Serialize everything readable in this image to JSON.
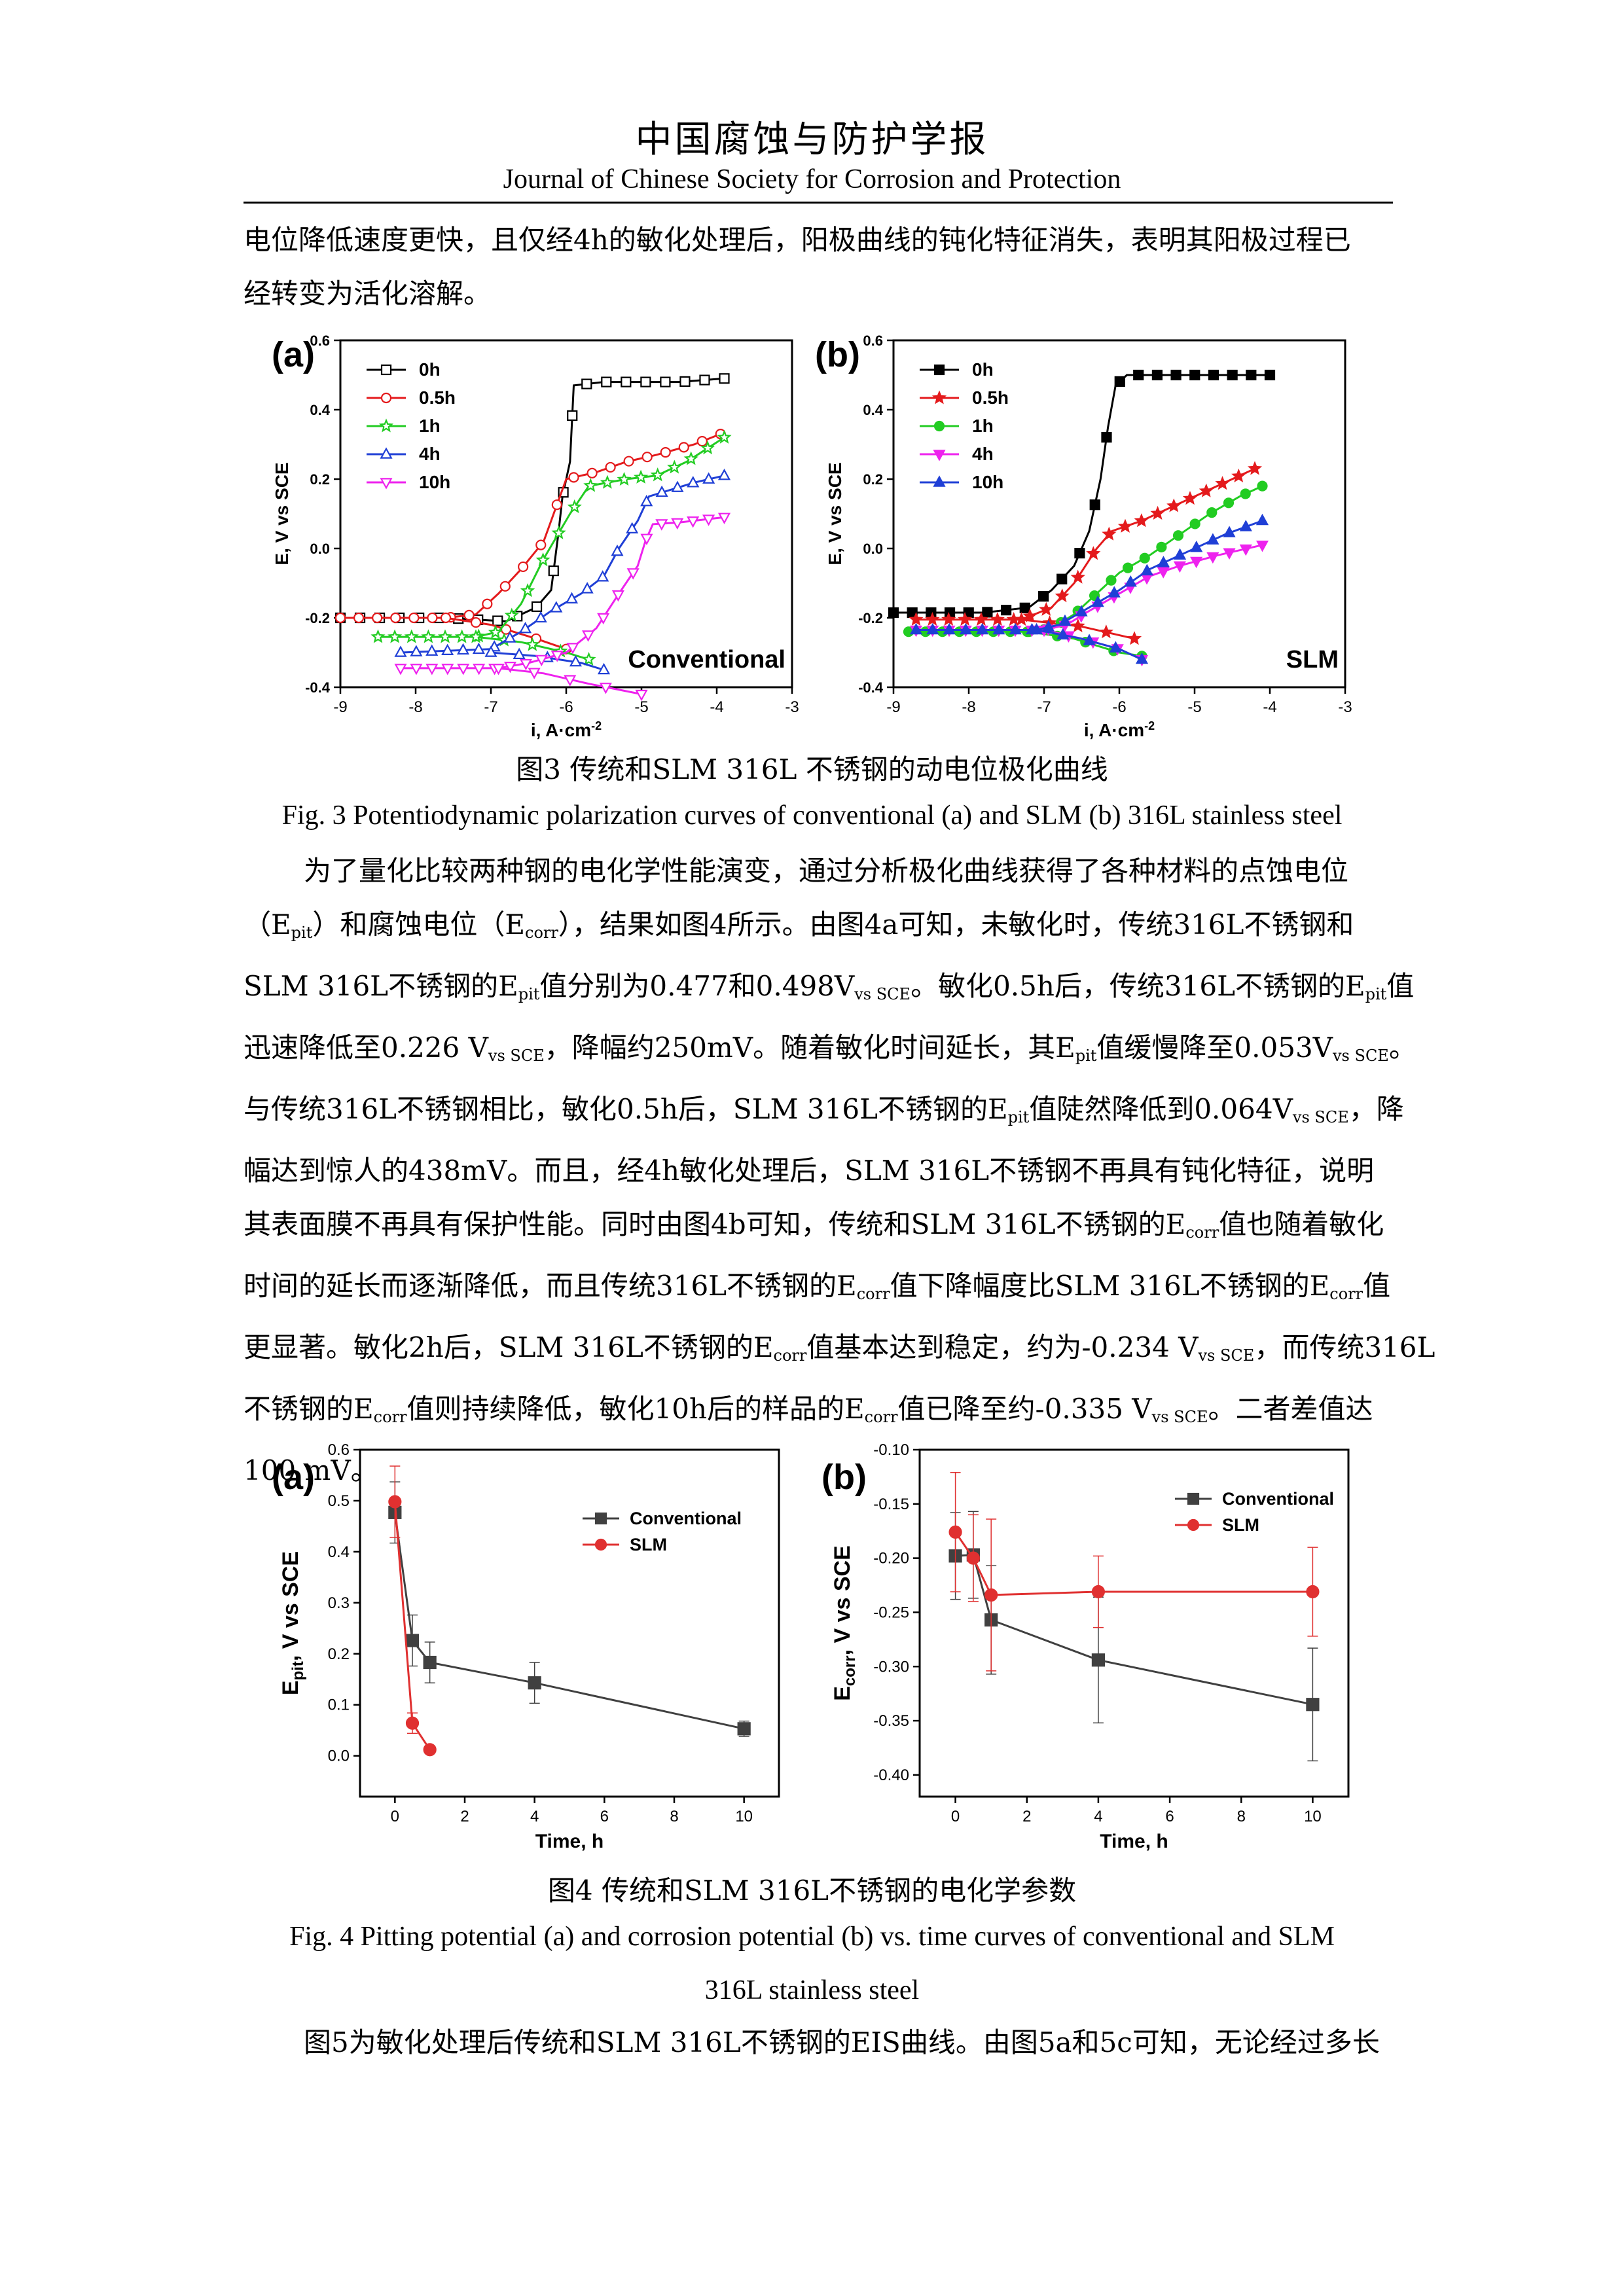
{
  "header": {
    "journal_cn": "中国腐蚀与防护学报",
    "journal_en": "Journal of Chinese Society for Corrosion and Protection"
  },
  "intro_para": {
    "l1": "电位降低速度更快，且仅经4h的敏化处理后，阳极曲线的钝化特征消失，表明其阳极过程已",
    "l2": "经转变为活化溶解。"
  },
  "fig3": {
    "caption_cn": "图3  传统和SLM 316L  不锈钢的动电位极化曲线",
    "caption_en": "Fig. 3 Potentiodynamic polarization curves of conventional (a) and SLM (b) 316L stainless steel"
  },
  "para2": {
    "l1": "为了量化比较两种钢的电化学性能演变，通过分析极化曲线获得了各种材料的点蚀电位",
    "l2_a": "（E",
    "l2_sub1": "pit",
    "l2_b": "）和腐蚀电位（E",
    "l2_sub2": "corr",
    "l2_c": "），结果如图4所示。由图4a可知，未敏化时，传统316L不锈钢和",
    "l3_a": "SLM 316L不锈钢的E",
    "l3_sub1": "pit",
    "l3_b": "值分别为0.477和0.498V",
    "l3_sub2": "vs SCE",
    "l3_c": "。敏化0.5h后，传统316L不锈钢的E",
    "l3_sub3": "pit",
    "l3_d": "值",
    "l4_a": "迅速降低至0.226 V",
    "l4_sub1": "vs SCE",
    "l4_b": "，降幅约250mV。随着敏化时间延长，其E",
    "l4_sub2": "pit",
    "l4_c": "值缓慢降至0.053V",
    "l4_sub3": "vs SCE",
    "l4_d": "。",
    "l5_a": "与传统316L不锈钢相比，敏化0.5h后，SLM 316L不锈钢的E",
    "l5_sub1": "pit",
    "l5_b": "值陡然降低到0.064V",
    "l5_sub2": "vs SCE",
    "l5_c": "，降",
    "l6": "幅达到惊人的438mV。而且，经4h敏化处理后，SLM 316L不锈钢不再具有钝化特征，说明",
    "l7_a": "其表面膜不再具有保护性能。同时由图4b可知，传统和SLM 316L不锈钢的E",
    "l7_sub1": "corr",
    "l7_b": "值也随着敏化",
    "l8_a": "时间的延长而逐渐降低，而且传统316L不锈钢的E",
    "l8_sub1": "corr",
    "l8_b": "值下降幅度比SLM 316L不锈钢的E",
    "l8_sub2": "corr",
    "l8_c": "值",
    "l9_a": "更显著。敏化2h后，SLM 316L不锈钢的E",
    "l9_sub1": "corr",
    "l9_b": "值基本达到稳定，约为-0.234 V",
    "l9_sub2": "vs SCE",
    "l9_c": "，而传统316L",
    "l10_a": "不锈钢的E",
    "l10_sub1": "corr",
    "l10_b": "值则持续降低，敏化10h后的样品的E",
    "l10_sub2": "corr",
    "l10_c": "值已降至约-0.335 V",
    "l10_sub3": "vs SCE",
    "l10_d": "。二者差值达",
    "l11": "100 mV。"
  },
  "fig4": {
    "caption_cn": "图4  传统和SLM 316L不锈钢的电化学参数",
    "caption_en_l1": "Fig. 4 Pitting potential (a) and corrosion potential (b) vs. time curves of conventional and SLM",
    "caption_en_l2": "316L stainless steel"
  },
  "para3": {
    "l1": "图5为敏化处理后传统和SLM 316L不锈钢的EIS曲线。由图5a和5c可知，无论经过多长"
  },
  "colors": {
    "black": "#000000",
    "red": "#e41a1c",
    "green": "#22cc22",
    "blue": "#1f3fd6",
    "magenta": "#ee22ee",
    "gray": "#404040",
    "red4": "#e03030"
  },
  "chart_data": [
    {
      "id": "fig3a",
      "type": "line",
      "panel_label": "(a)",
      "annotation": "Conventional",
      "xlabel": "i, A·cm",
      "xlabel_sup": "-2",
      "ylabel": "E, V vs SCE",
      "xlim": [
        -9,
        -3
      ],
      "ylim": [
        -0.4,
        0.6
      ],
      "xticks": [
        -9,
        -8,
        -7,
        -6,
        -5,
        -4,
        -3
      ],
      "yticks": [
        -0.4,
        -0.2,
        0.0,
        0.2,
        0.4,
        0.6
      ],
      "series": [
        {
          "name": "0h",
          "color": "#000000",
          "marker": "square-open",
          "anodic": [
            [
              -9,
              -0.2
            ],
            [
              -7.6,
              -0.2
            ],
            [
              -6.8,
              -0.21
            ],
            [
              -6.4,
              -0.17
            ],
            [
              -6.2,
              -0.12
            ],
            [
              -6.1,
              0.05
            ],
            [
              -6.05,
              0.15
            ],
            [
              -5.95,
              0.25
            ],
            [
              -5.9,
              0.47
            ],
            [
              -5.5,
              0.48
            ],
            [
              -4.5,
              0.48
            ],
            [
              -3.9,
              0.49
            ]
          ],
          "cathodic": []
        },
        {
          "name": "0.5h",
          "color": "#e41a1c",
          "marker": "circle-open",
          "anodic": [
            [
              -9,
              -0.2
            ],
            [
              -7.6,
              -0.2
            ],
            [
              -7.2,
              -0.19
            ],
            [
              -6.9,
              -0.13
            ],
            [
              -6.6,
              -0.06
            ],
            [
              -6.3,
              0.02
            ],
            [
              -6.0,
              0.2
            ],
            [
              -5.6,
              0.22
            ],
            [
              -5.2,
              0.25
            ],
            [
              -4.8,
              0.27
            ],
            [
              -4.3,
              0.3
            ],
            [
              -3.95,
              0.33
            ]
          ],
          "cathodic": [
            [
              -7.6,
              -0.2
            ],
            [
              -7.0,
              -0.22
            ],
            [
              -6.4,
              -0.26
            ],
            [
              -6.0,
              -0.29
            ]
          ]
        },
        {
          "name": "1h",
          "color": "#22cc22",
          "marker": "star-open",
          "anodic": [
            [
              -8.5,
              -0.255
            ],
            [
              -7.2,
              -0.255
            ],
            [
              -6.9,
              -0.24
            ],
            [
              -6.6,
              -0.16
            ],
            [
              -6.3,
              -0.03
            ],
            [
              -5.95,
              0.1
            ],
            [
              -5.7,
              0.18
            ],
            [
              -5.2,
              0.2
            ],
            [
              -4.8,
              0.21
            ],
            [
              -4.4,
              0.25
            ],
            [
              -3.9,
              0.32
            ]
          ],
          "cathodic": [
            [
              -7.2,
              -0.255
            ],
            [
              -6.6,
              -0.27
            ],
            [
              -6.0,
              -0.3
            ],
            [
              -5.7,
              -0.32
            ]
          ]
        },
        {
          "name": "4h",
          "color": "#1f3fd6",
          "marker": "triangle-open",
          "anodic": [
            [
              -8.2,
              -0.3
            ],
            [
              -7.0,
              -0.29
            ],
            [
              -6.6,
              -0.24
            ],
            [
              -6.2,
              -0.18
            ],
            [
              -5.8,
              -0.13
            ],
            [
              -5.5,
              -0.08
            ],
            [
              -5.3,
              0.0
            ],
            [
              -5.05,
              0.08
            ],
            [
              -4.9,
              0.15
            ],
            [
              -4.6,
              0.17
            ],
            [
              -4.3,
              0.19
            ],
            [
              -3.9,
              0.21
            ]
          ],
          "cathodic": [
            [
              -7.0,
              -0.3
            ],
            [
              -6.4,
              -0.31
            ],
            [
              -5.8,
              -0.33
            ],
            [
              -5.5,
              -0.35
            ]
          ]
        },
        {
          "name": "10h",
          "color": "#ee22ee",
          "marker": "triangle-down-open",
          "anodic": [
            [
              -8.2,
              -0.345
            ],
            [
              -6.9,
              -0.345
            ],
            [
              -6.5,
              -0.33
            ],
            [
              -6.0,
              -0.3
            ],
            [
              -5.6,
              -0.23
            ],
            [
              -5.3,
              -0.13
            ],
            [
              -5.05,
              -0.05
            ],
            [
              -4.95,
              0.02
            ],
            [
              -4.85,
              0.07
            ],
            [
              -4.5,
              0.075
            ],
            [
              -3.9,
              0.09
            ]
          ],
          "cathodic": [
            [
              -6.9,
              -0.345
            ],
            [
              -6.3,
              -0.36
            ],
            [
              -5.7,
              -0.39
            ],
            [
              -5.0,
              -0.42
            ]
          ]
        }
      ]
    },
    {
      "id": "fig3b",
      "type": "line",
      "panel_label": "(b)",
      "annotation": "SLM",
      "xlabel": "i, A·cm",
      "xlabel_sup": "-2",
      "ylabel": "E, V vs SCE",
      "xlim": [
        -9,
        -3
      ],
      "ylim": [
        -0.4,
        0.6
      ],
      "xticks": [
        -9,
        -8,
        -7,
        -6,
        -5,
        -4,
        -3
      ],
      "yticks": [
        -0.4,
        -0.2,
        0.0,
        0.2,
        0.4,
        0.6
      ],
      "series": [
        {
          "name": "0h",
          "color": "#000000",
          "marker": "square",
          "anodic": [
            [
              -9,
              -0.185
            ],
            [
              -7.8,
              -0.185
            ],
            [
              -7.2,
              -0.17
            ],
            [
              -6.9,
              -0.12
            ],
            [
              -6.6,
              -0.05
            ],
            [
              -6.4,
              0.05
            ],
            [
              -6.25,
              0.2
            ],
            [
              -6.15,
              0.35
            ],
            [
              -6.05,
              0.47
            ],
            [
              -5.9,
              0.5
            ],
            [
              -5.0,
              0.5
            ],
            [
              -4.0,
              0.5
            ]
          ],
          "cathodic": []
        },
        {
          "name": "0.5h",
          "color": "#e41a1c",
          "marker": "star",
          "anodic": [
            [
              -8.7,
              -0.205
            ],
            [
              -7.3,
              -0.205
            ],
            [
              -6.9,
              -0.17
            ],
            [
              -6.6,
              -0.1
            ],
            [
              -6.3,
              0.0
            ],
            [
              -6.1,
              0.05
            ],
            [
              -5.7,
              0.08
            ],
            [
              -5.3,
              0.12
            ],
            [
              -4.8,
              0.17
            ],
            [
              -4.2,
              0.23
            ]
          ],
          "cathodic": [
            [
              -7.3,
              -0.205
            ],
            [
              -6.5,
              -0.225
            ],
            [
              -5.8,
              -0.26
            ]
          ]
        },
        {
          "name": "1h",
          "color": "#22cc22",
          "marker": "circle",
          "anodic": [
            [
              -8.8,
              -0.24
            ],
            [
              -7.2,
              -0.24
            ],
            [
              -6.9,
              -0.23
            ],
            [
              -6.6,
              -0.19
            ],
            [
              -6.3,
              -0.13
            ],
            [
              -6.0,
              -0.07
            ],
            [
              -5.6,
              -0.02
            ],
            [
              -5.2,
              0.04
            ],
            [
              -4.8,
              0.1
            ],
            [
              -4.4,
              0.15
            ],
            [
              -4.1,
              0.18
            ]
          ],
          "cathodic": [
            [
              -7.2,
              -0.24
            ],
            [
              -6.6,
              -0.26
            ],
            [
              -6.0,
              -0.3
            ],
            [
              -5.7,
              -0.31
            ]
          ]
        },
        {
          "name": "4h",
          "color": "#ee22ee",
          "marker": "triangle-down",
          "anodic": [
            [
              -8.7,
              -0.235
            ],
            [
              -7.0,
              -0.235
            ],
            [
              -6.7,
              -0.22
            ],
            [
              -6.4,
              -0.18
            ],
            [
              -6.0,
              -0.13
            ],
            [
              -5.6,
              -0.08
            ],
            [
              -5.2,
              -0.05
            ],
            [
              -4.7,
              -0.02
            ],
            [
              -4.1,
              0.01
            ]
          ],
          "cathodic": [
            [
              -7.0,
              -0.235
            ],
            [
              -6.5,
              -0.26
            ],
            [
              -6.0,
              -0.29
            ],
            [
              -5.7,
              -0.32
            ]
          ]
        },
        {
          "name": "10h",
          "color": "#1f3fd6",
          "marker": "triangle",
          "anodic": [
            [
              -8.7,
              -0.235
            ],
            [
              -7.1,
              -0.235
            ],
            [
              -6.8,
              -0.22
            ],
            [
              -6.4,
              -0.17
            ],
            [
              -6.0,
              -0.12
            ],
            [
              -5.6,
              -0.06
            ],
            [
              -5.1,
              -0.01
            ],
            [
              -4.6,
              0.04
            ],
            [
              -4.1,
              0.08
            ]
          ],
          "cathodic": [
            [
              -7.1,
              -0.235
            ],
            [
              -6.5,
              -0.26
            ],
            [
              -6.0,
              -0.29
            ],
            [
              -5.7,
              -0.32
            ]
          ]
        }
      ]
    },
    {
      "id": "fig4a",
      "type": "line",
      "panel_label": "(a)",
      "xlabel": "Time, h",
      "ylabel": "E",
      "ylabel_sub": "pit",
      "ylabel_rest": ", V vs SCE",
      "xlim": [
        -1,
        11
      ],
      "ylim": [
        -0.08,
        0.6
      ],
      "xticks": [
        0,
        2,
        4,
        6,
        8,
        10
      ],
      "yticks": [
        0.0,
        0.1,
        0.2,
        0.3,
        0.4,
        0.5,
        0.6
      ],
      "series": [
        {
          "name": "Conventional",
          "color": "#404040",
          "marker": "square",
          "x": [
            0,
            0.5,
            1,
            4,
            10
          ],
          "y": [
            0.477,
            0.226,
            0.183,
            0.143,
            0.053
          ],
          "err": [
            0.06,
            0.05,
            0.04,
            0.04,
            0.015
          ]
        },
        {
          "name": "SLM",
          "color": "#e03030",
          "marker": "circle",
          "x": [
            0,
            0.5,
            1
          ],
          "y": [
            0.498,
            0.064,
            0.012
          ],
          "err": [
            0.07,
            0.02,
            0.005
          ]
        }
      ]
    },
    {
      "id": "fig4b",
      "type": "line",
      "panel_label": "(b)",
      "xlabel": "Time, h",
      "ylabel": "E",
      "ylabel_sub": "corr",
      "ylabel_rest": ", V vs SCE",
      "xlim": [
        -1,
        11
      ],
      "ylim": [
        -0.42,
        -0.1
      ],
      "xticks": [
        0,
        2,
        4,
        6,
        8,
        10
      ],
      "yticks": [
        -0.1,
        -0.15,
        -0.2,
        -0.25,
        -0.3,
        -0.35,
        -0.4
      ],
      "series": [
        {
          "name": "Conventional",
          "color": "#404040",
          "marker": "square",
          "x": [
            0,
            0.5,
            1,
            4,
            10
          ],
          "y": [
            -0.198,
            -0.197,
            -0.257,
            -0.294,
            -0.335
          ],
          "err": [
            0.04,
            0.04,
            0.05,
            0.058,
            0.052
          ]
        },
        {
          "name": "SLM",
          "color": "#e03030",
          "marker": "circle",
          "x": [
            0,
            0.5,
            1,
            4,
            10
          ],
          "y": [
            -0.176,
            -0.2,
            -0.234,
            -0.231,
            -0.231
          ],
          "err": [
            0.055,
            0.04,
            0.07,
            0.033,
            0.041
          ]
        }
      ]
    }
  ]
}
